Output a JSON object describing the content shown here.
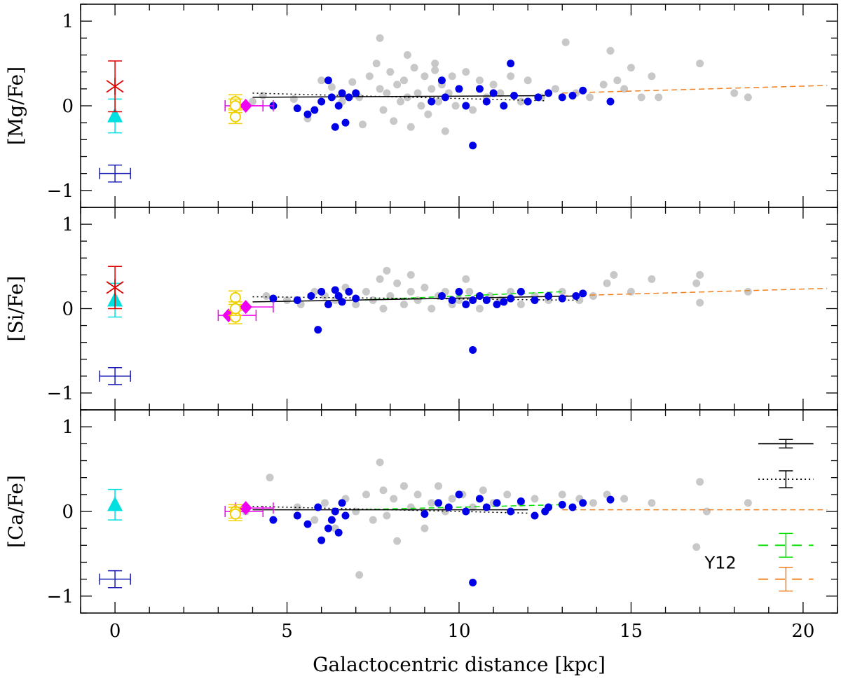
{
  "chart_data": {
    "type": "scatter",
    "xlabel": "Galactocentric distance [kpc]",
    "xlim": [
      -1,
      21
    ],
    "x_ticks": [
      "0",
      "5",
      "10",
      "15",
      "20"
    ],
    "y_ticks": [
      "1",
      "0",
      "−1"
    ],
    "panels": [
      {
        "ylabel": "[Mg/Fe]",
        "ylim": [
          -1.2,
          1.2
        ],
        "gray_points": [
          [
            4.0,
            0.05
          ],
          [
            4.3,
            0.12
          ],
          [
            5.2,
            0.08
          ],
          [
            5.6,
            -0.15
          ],
          [
            6.0,
            0.3
          ],
          [
            6.3,
            0.22
          ],
          [
            6.6,
            0.05
          ],
          [
            6.9,
            0.28
          ],
          [
            7.1,
            0.1
          ],
          [
            7.2,
            -0.22
          ],
          [
            7.4,
            0.35
          ],
          [
            7.6,
            0.5
          ],
          [
            7.7,
            0.2
          ],
          [
            7.8,
            -0.05
          ],
          [
            7.9,
            0.15
          ],
          [
            8.0,
            0.4
          ],
          [
            8.1,
            -0.18
          ],
          [
            8.2,
            0.25
          ],
          [
            8.3,
            0.05
          ],
          [
            8.4,
            0.3
          ],
          [
            8.5,
            0.1
          ],
          [
            8.6,
            -0.25
          ],
          [
            8.7,
            0.45
          ],
          [
            8.8,
            0.15
          ],
          [
            8.9,
            0.0
          ],
          [
            9.0,
            0.35
          ],
          [
            9.1,
            -0.1
          ],
          [
            9.2,
            0.2
          ],
          [
            9.3,
            0.42
          ],
          [
            9.4,
            0.05
          ],
          [
            9.5,
            0.25
          ],
          [
            9.6,
            -0.3
          ],
          [
            9.7,
            0.15
          ],
          [
            9.8,
            0.35
          ],
          [
            9.9,
            0.0
          ],
          [
            10.0,
            0.2
          ],
          [
            10.2,
            0.4
          ],
          [
            10.4,
            -0.05
          ],
          [
            10.6,
            0.3
          ],
          [
            10.8,
            0.1
          ],
          [
            11.0,
            0.25
          ],
          [
            11.2,
            0.15
          ],
          [
            11.5,
            0.35
          ],
          [
            11.8,
            0.05
          ],
          [
            12.0,
            0.3
          ],
          [
            12.4,
            0.1
          ],
          [
            12.8,
            0.2
          ],
          [
            13.1,
            0.75
          ],
          [
            13.4,
            0.15
          ],
          [
            13.8,
            0.1
          ],
          [
            14.2,
            0.25
          ],
          [
            14.6,
            0.3
          ],
          [
            14.8,
            0.2
          ],
          [
            15.0,
            0.45
          ],
          [
            15.3,
            0.1
          ],
          [
            15.8,
            0.1
          ],
          [
            17.0,
            0.5
          ],
          [
            18.0,
            0.15
          ],
          [
            18.4,
            0.1
          ],
          [
            7.7,
            0.8
          ],
          [
            8.5,
            0.6
          ],
          [
            9.3,
            0.5
          ],
          [
            14.4,
            0.65
          ],
          [
            15.6,
            0.35
          ]
        ],
        "blue_points": [
          [
            4.6,
            0.0
          ],
          [
            5.3,
            -0.03
          ],
          [
            5.6,
            -0.1
          ],
          [
            5.8,
            -0.05
          ],
          [
            6.0,
            0.05
          ],
          [
            6.2,
            0.3
          ],
          [
            6.3,
            0.1
          ],
          [
            6.4,
            -0.25
          ],
          [
            6.5,
            0.0
          ],
          [
            6.6,
            0.15
          ],
          [
            6.7,
            -0.2
          ],
          [
            6.8,
            0.1
          ],
          [
            7.0,
            0.15
          ],
          [
            9.2,
            0.05
          ],
          [
            9.5,
            0.3
          ],
          [
            9.6,
            0.1
          ],
          [
            10.0,
            0.2
          ],
          [
            10.2,
            0.0
          ],
          [
            10.4,
            -0.47
          ],
          [
            10.6,
            0.2
          ],
          [
            10.8,
            0.05
          ],
          [
            11.0,
            0.15
          ],
          [
            11.3,
            0.0
          ],
          [
            11.6,
            0.12
          ],
          [
            12.0,
            0.05
          ],
          [
            12.3,
            0.1
          ],
          [
            12.6,
            0.15
          ],
          [
            13.0,
            0.1
          ],
          [
            13.3,
            0.12
          ],
          [
            13.6,
            0.18
          ],
          [
            11.5,
            0.5
          ],
          [
            14.4,
            0.05
          ]
        ],
        "red_star": [
          0,
          0.23,
          0.3
        ],
        "cyan_triangle": [
          0,
          -0.12,
          0.2
        ],
        "yellow_circles": [
          [
            3.5,
            0.05
          ],
          [
            3.5,
            -0.13
          ],
          [
            3.5,
            0.0
          ]
        ],
        "magenta_diamonds": [
          [
            3.5,
            0.0
          ],
          [
            3.8,
            0.0
          ]
        ],
        "error_bar_sample": [
          0,
          -0.8,
          0.1,
          0.5
        ],
        "trend_solid": [
          [
            4.0,
            0.1
          ],
          [
            12.5,
            0.12
          ]
        ],
        "trend_dotted": [
          [
            4.0,
            0.15
          ],
          [
            12.5,
            0.06
          ]
        ],
        "trend_orange_dashed": [
          [
            13.0,
            0.15
          ],
          [
            20.7,
            0.24
          ]
        ]
      },
      {
        "ylabel": "[Si/Fe]",
        "ylim": [
          -1.2,
          1.2
        ],
        "gray_points": [
          [
            4.4,
            0.15
          ],
          [
            5.0,
            0.1
          ],
          [
            5.4,
            0.05
          ],
          [
            5.8,
            0.2
          ],
          [
            6.1,
            0.15
          ],
          [
            6.4,
            0.1
          ],
          [
            6.7,
            0.25
          ],
          [
            7.0,
            0.05
          ],
          [
            7.3,
            0.2
          ],
          [
            7.5,
            0.1
          ],
          [
            7.7,
            0.35
          ],
          [
            7.8,
            0.0
          ],
          [
            8.0,
            0.15
          ],
          [
            8.2,
            0.3
          ],
          [
            8.4,
            0.05
          ],
          [
            8.6,
            0.2
          ],
          [
            8.8,
            0.1
          ],
          [
            9.0,
            0.25
          ],
          [
            9.2,
            0.0
          ],
          [
            9.4,
            0.15
          ],
          [
            9.6,
            0.2
          ],
          [
            9.8,
            0.05
          ],
          [
            10.0,
            0.1
          ],
          [
            10.3,
            0.2
          ],
          [
            10.6,
            0.0
          ],
          [
            10.9,
            0.15
          ],
          [
            11.2,
            0.1
          ],
          [
            11.5,
            0.2
          ],
          [
            11.8,
            0.05
          ],
          [
            12.2,
            0.15
          ],
          [
            12.6,
            0.1
          ],
          [
            13.0,
            0.2
          ],
          [
            13.5,
            0.1
          ],
          [
            13.9,
            0.15
          ],
          [
            14.3,
            0.3
          ],
          [
            14.5,
            0.4
          ],
          [
            15.0,
            0.2
          ],
          [
            15.6,
            0.35
          ],
          [
            16.9,
            0.3
          ],
          [
            17.0,
            0.4
          ],
          [
            17.0,
            0.07
          ],
          [
            18.4,
            0.2
          ],
          [
            7.9,
            0.45
          ],
          [
            8.6,
            0.4
          ],
          [
            10.2,
            0.35
          ]
        ],
        "blue_points": [
          [
            4.6,
            0.12
          ],
          [
            5.3,
            0.1
          ],
          [
            5.7,
            0.15
          ],
          [
            5.9,
            -0.25
          ],
          [
            6.0,
            0.2
          ],
          [
            6.2,
            0.05
          ],
          [
            6.4,
            0.22
          ],
          [
            6.5,
            0.15
          ],
          [
            6.6,
            0.08
          ],
          [
            6.8,
            0.2
          ],
          [
            7.0,
            0.12
          ],
          [
            9.5,
            0.15
          ],
          [
            9.8,
            0.1
          ],
          [
            10.0,
            0.2
          ],
          [
            10.2,
            0.05
          ],
          [
            10.4,
            -0.49
          ],
          [
            10.6,
            0.15
          ],
          [
            10.8,
            0.1
          ],
          [
            11.1,
            0.05
          ],
          [
            11.5,
            0.12
          ],
          [
            11.8,
            0.2
          ],
          [
            12.2,
            0.1
          ],
          [
            12.6,
            0.15
          ],
          [
            13.0,
            0.12
          ],
          [
            13.4,
            0.15
          ],
          [
            13.6,
            0.18
          ],
          [
            10.4,
            0.1
          ],
          [
            11.3,
            0.08
          ]
        ],
        "red_star": [
          0,
          0.25,
          0.25
        ],
        "cyan_triangle": [
          0,
          0.1,
          0.2
        ],
        "yellow_circles": [
          [
            3.5,
            0.13
          ],
          [
            3.5,
            -0.1
          ],
          [
            3.5,
            0.0
          ]
        ],
        "magenta_diamonds": [
          [
            3.3,
            -0.08
          ],
          [
            3.8,
            0.02
          ]
        ],
        "error_bar_sample": [
          0,
          -0.8,
          0.1,
          0.5
        ],
        "trend_solid": [
          [
            4.0,
            0.08
          ],
          [
            13.5,
            0.15
          ]
        ],
        "trend_dotted": [
          [
            4.0,
            0.14
          ],
          [
            13.5,
            0.1
          ]
        ],
        "trend_green_dashed": [
          [
            7.0,
            0.1
          ],
          [
            13.0,
            0.2
          ]
        ],
        "trend_orange_dashed": [
          [
            13.0,
            0.15
          ],
          [
            20.7,
            0.24
          ]
        ]
      },
      {
        "ylabel": "[Ca/Fe]",
        "ylim": [
          -1.2,
          1.2
        ],
        "gray_points": [
          [
            3.8,
            0.0
          ],
          [
            4.5,
            0.4
          ],
          [
            5.3,
            0.05
          ],
          [
            5.8,
            -0.1
          ],
          [
            6.1,
            0.1
          ],
          [
            6.4,
            -0.2
          ],
          [
            6.7,
            0.15
          ],
          [
            7.0,
            0.0
          ],
          [
            7.1,
            -0.75
          ],
          [
            7.3,
            0.2
          ],
          [
            7.5,
            -0.1
          ],
          [
            7.7,
            0.58
          ],
          [
            7.8,
            0.25
          ],
          [
            7.9,
            -0.05
          ],
          [
            8.1,
            0.15
          ],
          [
            8.2,
            -0.35
          ],
          [
            8.4,
            0.3
          ],
          [
            8.6,
            0.05
          ],
          [
            8.8,
            0.2
          ],
          [
            9.0,
            -0.2
          ],
          [
            9.2,
            0.1
          ],
          [
            9.4,
            0.3
          ],
          [
            9.6,
            0.0
          ],
          [
            9.8,
            0.15
          ],
          [
            10.1,
            0.2
          ],
          [
            10.4,
            0.05
          ],
          [
            10.7,
            0.25
          ],
          [
            11.0,
            0.1
          ],
          [
            11.4,
            0.2
          ],
          [
            11.8,
            0.1
          ],
          [
            12.2,
            0.15
          ],
          [
            12.6,
            0.05
          ],
          [
            13.0,
            0.2
          ],
          [
            13.5,
            0.15
          ],
          [
            13.9,
            0.1
          ],
          [
            14.3,
            0.2
          ],
          [
            14.8,
            0.15
          ],
          [
            15.6,
            0.1
          ],
          [
            16.9,
            -0.42
          ],
          [
            17.0,
            0.35
          ],
          [
            17.2,
            0.0
          ],
          [
            18.4,
            0.1
          ]
        ],
        "blue_points": [
          [
            4.6,
            -0.1
          ],
          [
            5.3,
            -0.05
          ],
          [
            5.6,
            -0.15
          ],
          [
            5.9,
            0.05
          ],
          [
            6.0,
            -0.34
          ],
          [
            6.2,
            -0.2
          ],
          [
            6.3,
            -0.1
          ],
          [
            6.4,
            0.0
          ],
          [
            6.5,
            -0.25
          ],
          [
            6.6,
            0.1
          ],
          [
            6.7,
            -0.05
          ],
          [
            9.4,
            0.1
          ],
          [
            9.7,
            0.05
          ],
          [
            10.0,
            0.2
          ],
          [
            10.2,
            0.0
          ],
          [
            10.4,
            -0.84
          ],
          [
            10.6,
            0.15
          ],
          [
            10.8,
            0.05
          ],
          [
            11.1,
            0.1
          ],
          [
            11.5,
            0.0
          ],
          [
            11.8,
            0.12
          ],
          [
            12.2,
            -0.05
          ],
          [
            12.6,
            0.05
          ],
          [
            13.0,
            0.08
          ],
          [
            13.3,
            0.05
          ],
          [
            13.6,
            0.1
          ],
          [
            14.4,
            0.14
          ],
          [
            9.0,
            -0.03
          ],
          [
            12.5,
            0.0
          ]
        ],
        "cyan_triangle": [
          0,
          0.08,
          0.18
        ],
        "yellow_circles": [
          [
            3.5,
            0.0
          ],
          [
            3.5,
            -0.03
          ]
        ],
        "magenta_diamonds": [
          [
            3.5,
            0.0
          ],
          [
            3.8,
            0.04
          ]
        ],
        "error_bar_sample": [
          0,
          -0.8,
          0.1,
          0.5
        ],
        "trend_solid": [
          [
            4.0,
            0.02
          ],
          [
            12.0,
            0.02
          ]
        ],
        "trend_dotted": [
          [
            4.0,
            0.06
          ],
          [
            12.0,
            -0.02
          ]
        ],
        "trend_green_dashed": [
          [
            7.0,
            0.02
          ],
          [
            13.0,
            0.08
          ]
        ],
        "trend_orange_dashed": [
          [
            13.0,
            0.02
          ],
          [
            20.7,
            0.02
          ]
        ],
        "legend": {
          "label": "Y12",
          "placement": "right",
          "entries": [
            "solid-black",
            "dotted-black",
            "dashed-green",
            "dashed-orange"
          ]
        }
      }
    ],
    "colors": {
      "gray": "#c8c8c8",
      "blue": "#0000e8",
      "red": "#e00000",
      "cyan": "#00e0e0",
      "yellow": "#f0d000",
      "magenta": "#f000f0",
      "navy": "#1a1ab8",
      "green": "#00e000",
      "orange": "#f08020"
    }
  }
}
